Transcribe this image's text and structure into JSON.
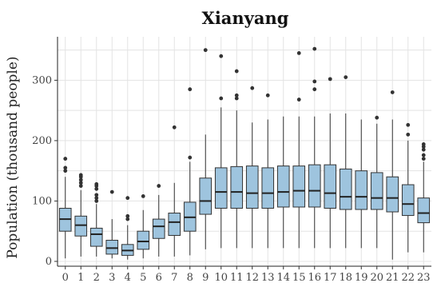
{
  "chart_data": {
    "type": "boxplot",
    "title": "Xianyang",
    "xlabel": "",
    "ylabel": "Population (thousand people)",
    "ylim": [
      -8,
      372
    ],
    "yticks": [
      0,
      100,
      200,
      300
    ],
    "grid": true,
    "box_color": "#9ec4de",
    "categories": [
      "0",
      "1",
      "2",
      "3",
      "4",
      "5",
      "6",
      "7",
      "8",
      "9",
      "10",
      "11",
      "12",
      "13",
      "14",
      "15",
      "16",
      "17",
      "18",
      "19",
      "20",
      "21",
      "22",
      "23"
    ],
    "boxes": [
      {
        "min": 5,
        "q1": 50,
        "median": 70,
        "q3": 88,
        "max": 140,
        "outliers": [
          150,
          155,
          170
        ]
      },
      {
        "min": 8,
        "q1": 42,
        "median": 60,
        "q3": 75,
        "max": 118,
        "outliers": [
          125,
          130,
          135,
          140,
          143
        ]
      },
      {
        "min": 8,
        "q1": 25,
        "median": 45,
        "q3": 55,
        "max": 95,
        "outliers": [
          100,
          105,
          110,
          120,
          125,
          128
        ]
      },
      {
        "min": 5,
        "q1": 12,
        "median": 22,
        "q3": 35,
        "max": 70,
        "outliers": [
          115
        ]
      },
      {
        "min": 3,
        "q1": 10,
        "median": 18,
        "q3": 28,
        "max": 60,
        "outliers": [
          70,
          75,
          105
        ]
      },
      {
        "min": 5,
        "q1": 20,
        "median": 33,
        "q3": 50,
        "max": 85,
        "outliers": [
          108
        ]
      },
      {
        "min": 8,
        "q1": 38,
        "median": 58,
        "q3": 70,
        "max": 110,
        "outliers": [
          125
        ]
      },
      {
        "min": 8,
        "q1": 43,
        "median": 65,
        "q3": 80,
        "max": 130,
        "outliers": [
          222
        ]
      },
      {
        "min": 10,
        "q1": 50,
        "median": 73,
        "q3": 98,
        "max": 165,
        "outliers": [
          172,
          285
        ]
      },
      {
        "min": 20,
        "q1": 78,
        "median": 100,
        "q3": 138,
        "max": 210,
        "outliers": [
          350
        ]
      },
      {
        "min": 22,
        "q1": 88,
        "median": 115,
        "q3": 155,
        "max": 255,
        "outliers": [
          270,
          340
        ]
      },
      {
        "min": 22,
        "q1": 88,
        "median": 115,
        "q3": 157,
        "max": 250,
        "outliers": [
          270,
          275,
          315
        ]
      },
      {
        "min": 22,
        "q1": 88,
        "median": 113,
        "q3": 158,
        "max": 230,
        "outliers": [
          287
        ]
      },
      {
        "min": 22,
        "q1": 88,
        "median": 113,
        "q3": 155,
        "max": 235,
        "outliers": [
          275
        ]
      },
      {
        "min": 22,
        "q1": 90,
        "median": 115,
        "q3": 158,
        "max": 240,
        "outliers": []
      },
      {
        "min": 22,
        "q1": 90,
        "median": 117,
        "q3": 158,
        "max": 240,
        "outliers": [
          268,
          345
        ]
      },
      {
        "min": 22,
        "q1": 90,
        "median": 117,
        "q3": 160,
        "max": 240,
        "outliers": [
          285,
          298,
          352
        ]
      },
      {
        "min": 22,
        "q1": 88,
        "median": 113,
        "q3": 160,
        "max": 245,
        "outliers": [
          302
        ]
      },
      {
        "min": 22,
        "q1": 86,
        "median": 107,
        "q3": 153,
        "max": 245,
        "outliers": [
          305
        ]
      },
      {
        "min": 22,
        "q1": 86,
        "median": 107,
        "q3": 150,
        "max": 235,
        "outliers": []
      },
      {
        "min": 22,
        "q1": 86,
        "median": 105,
        "q3": 147,
        "max": 228,
        "outliers": [
          238
        ]
      },
      {
        "min": 3,
        "q1": 82,
        "median": 105,
        "q3": 140,
        "max": 235,
        "outliers": [
          280
        ]
      },
      {
        "min": 15,
        "q1": 76,
        "median": 95,
        "q3": 127,
        "max": 200,
        "outliers": [
          210,
          226
        ]
      },
      {
        "min": 15,
        "q1": 64,
        "median": 80,
        "q3": 105,
        "max": 165,
        "outliers": [
          170,
          176,
          185,
          190,
          194
        ]
      }
    ]
  }
}
